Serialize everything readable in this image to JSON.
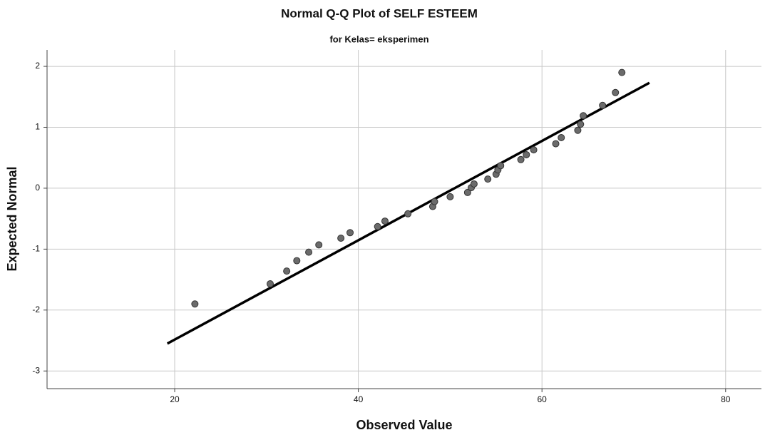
{
  "chart_data": {
    "type": "scatter",
    "title": "Normal Q-Q Plot of SELF ESTEEM",
    "subtitle": "for Kelas= eksperimen",
    "x_label": "Observed Value",
    "y_label": "Expected Normal",
    "xlim": [
      6.1,
      83.9
    ],
    "ylim": [
      -3.29,
      2.27
    ],
    "xticks": [
      20,
      40,
      60,
      80
    ],
    "yticks": [
      -3,
      -2,
      -1,
      0,
      1,
      2
    ],
    "grid": true,
    "color": "#6b6b6b",
    "x": [
      22.2,
      30.4,
      32.2,
      33.3,
      34.6,
      35.7,
      38.1,
      39.1,
      42.1,
      42.9,
      45.4,
      48.1,
      48.3,
      50.0,
      51.9,
      52.3,
      52.6,
      54.1,
      55.0,
      55.2,
      55.5,
      57.7,
      58.3,
      59.1,
      61.5,
      62.1,
      63.9,
      64.2,
      64.5,
      66.6,
      68.0,
      68.7
    ],
    "values": [
      -1.9,
      -1.57,
      -1.36,
      -1.19,
      -1.05,
      -0.93,
      -0.82,
      -0.73,
      -0.63,
      -0.54,
      -0.42,
      -0.3,
      -0.22,
      -0.14,
      -0.07,
      0.01,
      0.07,
      0.15,
      0.23,
      0.3,
      0.37,
      0.47,
      0.55,
      0.63,
      0.73,
      0.83,
      0.95,
      1.05,
      1.19,
      1.36,
      1.57,
      1.9
    ],
    "reference_line": {
      "x": [
        19.2,
        71.7
      ],
      "values": [
        -2.55,
        1.73
      ],
      "color": "#000000"
    }
  }
}
